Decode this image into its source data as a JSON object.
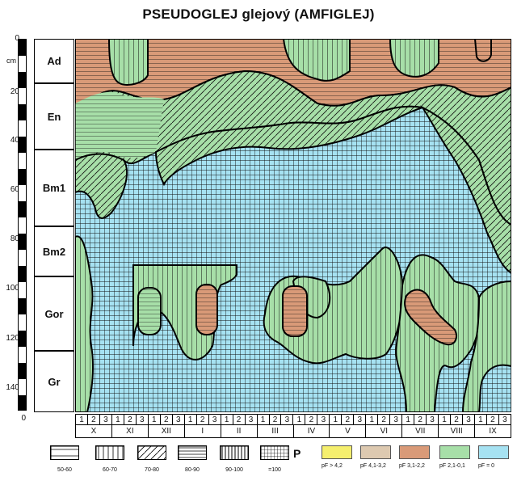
{
  "title": "PSEUDOGLEJ glejový (AMFIGLEJ)",
  "depth_unit": "cm",
  "depth_ticks": [
    "0",
    "20",
    "40",
    "60",
    "80",
    "100",
    "120",
    "140",
    "0"
  ],
  "horizons": [
    "Ad",
    "En",
    "Bm1",
    "Bm2",
    "Gor",
    "Gr"
  ],
  "decades": [
    "1",
    "2",
    "3"
  ],
  "months": [
    "X",
    "XI",
    "XII",
    "I",
    "II",
    "III",
    "IV",
    "V",
    "VI",
    "VII",
    "VIII",
    "IX"
  ],
  "pattern_legend": [
    {
      "label": "50-60"
    },
    {
      "label": "60-70"
    },
    {
      "label": "70-80"
    },
    {
      "label": "80-90"
    },
    {
      "label": "90-100"
    },
    {
      "label": "=100"
    }
  ],
  "pattern_legend_suffix": "P",
  "color_legend": [
    {
      "label": "pF > 4,2",
      "color": "#f5ef6e"
    },
    {
      "label": "pF 4,1-3,2",
      "color": "#ddc9b0"
    },
    {
      "label": "pF 3,1-2,2",
      "color": "#d99a78"
    },
    {
      "label": "pF 2,1-0,1",
      "color": "#a7dfa8"
    },
    {
      "label": "pF = 0",
      "color": "#a6e2f2"
    }
  ]
}
